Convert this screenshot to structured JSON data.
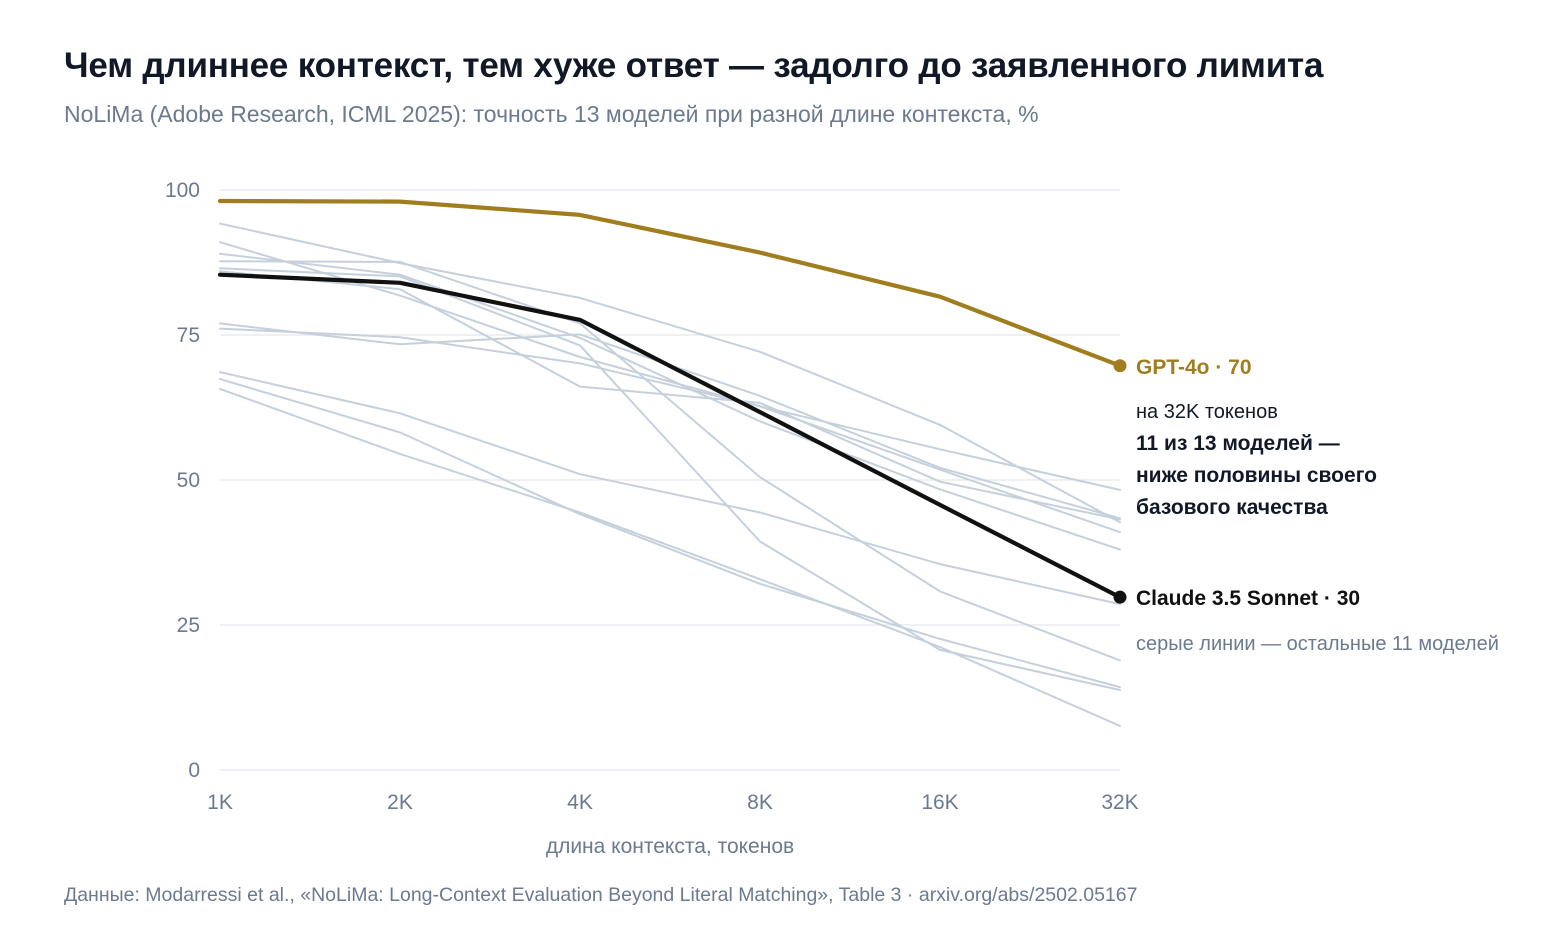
{
  "title": "Чем длиннее контекст, тем хуже ответ — задолго до заявленного лимита",
  "subtitle": "NoLiMa (Adobe Research, ICML 2025): точность 13 моделей при разной длине контекста, %",
  "source": "Данные: Modarressi et al., «NoLiMa: Long-Context Evaluation Beyond Literal Matching», Table 3 · arxiv.org/abs/2502.05167",
  "colors": {
    "highlight": "#a07d1e",
    "claude": "#111111",
    "gray": "#c6d0dc",
    "grid": "#e3e8ef",
    "axis_text": "#6b7a8f"
  },
  "chart_data": {
    "type": "line",
    "categories": [
      "1K",
      "2K",
      "4K",
      "8K",
      "16K",
      "32K"
    ],
    "xlabel": "длина контекста, токенов",
    "ylabel": "",
    "ylim": [
      0,
      100
    ],
    "yticks": [
      0,
      25,
      50,
      75,
      100
    ],
    "grid": true,
    "series": [
      {
        "name": "GPT-4o",
        "highlight": "gold",
        "values": [
          98.1,
          98.0,
          95.7,
          89.2,
          81.6,
          69.7
        ]
      },
      {
        "name": "Claude 3.5 Sonnet",
        "highlight": "black",
        "values": [
          85.4,
          84.0,
          77.6,
          61.7,
          45.7,
          29.8
        ]
      },
      {
        "name": "",
        "values": [
          94.2,
          87.4,
          81.4,
          72.1,
          59.5,
          42.7
        ]
      },
      {
        "name": "",
        "values": [
          91.0,
          81.8,
          71.2,
          62.7,
          51.8,
          41.0
        ]
      },
      {
        "name": "",
        "values": [
          89.0,
          85.4,
          74.5,
          60.1,
          48.4,
          38.0
        ]
      },
      {
        "name": "",
        "values": [
          87.7,
          87.6,
          77.0,
          50.5,
          30.8,
          18.9
        ]
      },
      {
        "name": "",
        "values": [
          86.5,
          85.1,
          73.2,
          39.4,
          20.7,
          13.8
        ]
      },
      {
        "name": "",
        "values": [
          77.0,
          73.4,
          75.1,
          64.5,
          52.1,
          43.4
        ]
      },
      {
        "name": "",
        "values": [
          76.1,
          74.6,
          70.1,
          62.7,
          55.3,
          48.3
        ]
      },
      {
        "name": "",
        "values": [
          68.6,
          61.5,
          51.0,
          44.4,
          35.5,
          28.6
        ]
      },
      {
        "name": "",
        "values": [
          67.4,
          58.2,
          44.1,
          32.1,
          22.6,
          14.3
        ]
      },
      {
        "name": "",
        "values": [
          65.7,
          54.5,
          44.4,
          32.9,
          21.2,
          7.6
        ]
      },
      {
        "name": "",
        "values": [
          86.0,
          82.9,
          66.1,
          63.3,
          49.7,
          43.2
        ]
      }
    ]
  },
  "labels": {
    "gpt": "GPT-4o · 70",
    "claude": "Claude 3.5 Sonnet · 30",
    "annotation_line1": "на 32K токенов",
    "annotation_line2": "11 из 13 моделей —",
    "annotation_line3": "ниже половины своего",
    "annotation_line4": "базового качества",
    "gray_note": "серые линии — остальные 11 моделей"
  }
}
